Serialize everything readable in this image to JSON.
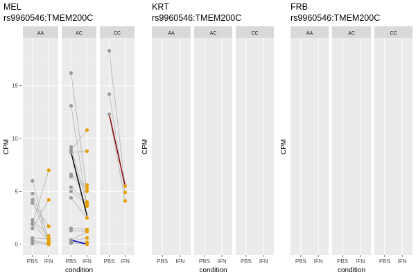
{
  "chart_data": [
    {
      "type": "scatter",
      "title_line1": "MEL",
      "title_line2": "rs9960546:TMEM200C",
      "xlabel": "condition",
      "ylabel": "CPM",
      "ylim": [
        -1,
        19.5
      ],
      "yticks": [
        0,
        5,
        10,
        15
      ],
      "x_categories": [
        "PBS",
        "IFN"
      ],
      "colors": {
        "PBS": "#999999",
        "IFN": "#E69F00",
        "pair_line": "#BBBBBB"
      },
      "facets": [
        {
          "label": "AA",
          "pairs": [
            [
              6.0,
              0.2
            ],
            [
              4.8,
              0.5
            ],
            [
              4.2,
              0.1
            ],
            [
              3.9,
              1.7
            ],
            [
              2.3,
              0.8
            ],
            [
              2.0,
              0.3
            ],
            [
              1.9,
              7.0
            ],
            [
              1.5,
              4.2
            ],
            [
              0.6,
              0.5
            ],
            [
              0.4,
              0.0
            ],
            [
              0.2,
              0.1
            ],
            [
              0.05,
              0.0
            ]
          ],
          "highlights": []
        },
        {
          "label": "AC",
          "pairs": [
            [
              16.2,
              5.0
            ],
            [
              13.1,
              3.6
            ],
            [
              9.2,
              3.9
            ],
            [
              8.9,
              10.8
            ],
            [
              8.7,
              8.8
            ],
            [
              6.6,
              5.6
            ],
            [
              6.4,
              5.3
            ],
            [
              5.4,
              4.0
            ],
            [
              5.0,
              3.8
            ],
            [
              4.4,
              2.5
            ],
            [
              1.5,
              1.4
            ],
            [
              1.3,
              1.2
            ],
            [
              0.4,
              1.2
            ],
            [
              0.3,
              0.6
            ],
            [
              0.25,
              0.2
            ],
            [
              0.15,
              0.0
            ],
            [
              0.1,
              0.1
            ]
          ],
          "highlights": [
            {
              "pbs": 8.7,
              "ifn": 2.7,
              "color": "#000000"
            },
            {
              "pbs": 0.4,
              "ifn": 0.0,
              "color": "#0000CC"
            }
          ]
        },
        {
          "label": "CC",
          "pairs": [
            [
              18.3,
              5.5
            ],
            [
              14.2,
              4.9
            ],
            [
              12.3,
              4.1
            ]
          ],
          "highlights": [
            {
              "pbs": 12.3,
              "ifn": 5.5,
              "color": "#8B0000"
            }
          ]
        }
      ]
    },
    {
      "type": "scatter",
      "title_line1": "KRT",
      "title_line2": "rs9960546:TMEM200C",
      "xlabel": "condition",
      "ylabel": "CPM",
      "x_categories": [
        "PBS",
        "IFN"
      ],
      "facets": [
        {
          "label": "AA",
          "pairs": [],
          "highlights": []
        },
        {
          "label": "AC",
          "pairs": [],
          "highlights": []
        },
        {
          "label": "CC",
          "pairs": [],
          "highlights": []
        }
      ]
    },
    {
      "type": "scatter",
      "title_line1": "FRB",
      "title_line2": "rs9960546:TMEM200C",
      "xlabel": "condition",
      "ylabel": "CPM",
      "x_categories": [
        "PBS",
        "IFN"
      ],
      "facets": [
        {
          "label": "AA",
          "pairs": [],
          "highlights": []
        },
        {
          "label": "AC",
          "pairs": [],
          "highlights": []
        },
        {
          "label": "CC",
          "pairs": [],
          "highlights": []
        }
      ]
    }
  ]
}
